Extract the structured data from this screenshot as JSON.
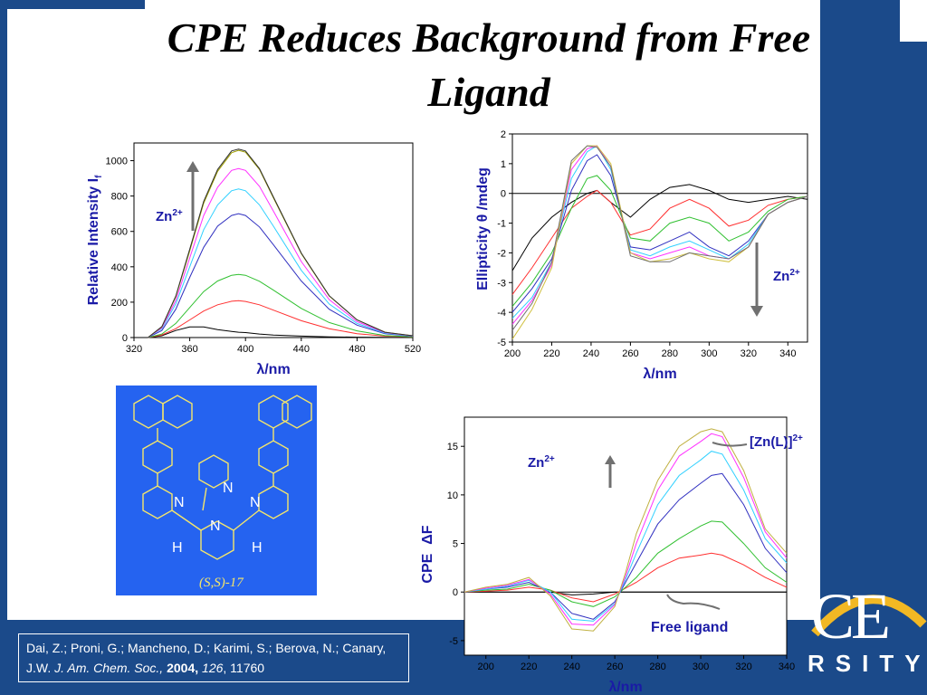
{
  "slide": {
    "title": "CPE Reduces Background from Free Ligand",
    "logo_text": "RSITY",
    "logo_letters": "CE",
    "colors": {
      "frame": "#1b4a8a",
      "structure_bg": "#2563f0",
      "label_blue": "#1a1aa6",
      "structure_lines": "#f5e66a"
    }
  },
  "structure": {
    "label": "(S,S)-17",
    "atoms": {
      "n_top": "N",
      "n_left": "N",
      "n_center": "N",
      "n_right": "N",
      "h_left": "H",
      "h_right": "H"
    }
  },
  "citation": {
    "authors": "Dai, Z.; Proni, G.; Mancheno, D.; Karimi, S.; Berova, N.; Canary, J.W.",
    "journal": "J. Am. Chem. Soc.,",
    "year": "2004,",
    "volume": "126",
    "pages": ", 11760"
  },
  "chart_data": [
    {
      "type": "line",
      "ylabel": "Relative Intensity I",
      "ylabel_sub": "f",
      "xlabel": "λ/nm",
      "xlim": [
        320,
        520
      ],
      "ylim": [
        0,
        1100
      ],
      "xticks": [
        320,
        360,
        400,
        440,
        480,
        520
      ],
      "yticks": [
        0,
        200,
        400,
        600,
        800,
        1000
      ],
      "annotation": "Zn",
      "annotation_sup": "2+",
      "arrow": "up",
      "x": [
        330,
        340,
        350,
        360,
        370,
        380,
        390,
        395,
        400,
        410,
        420,
        440,
        460,
        480,
        500,
        520
      ],
      "series": [
        {
          "color": "#000000",
          "values": [
            0,
            10,
            40,
            60,
            60,
            45,
            35,
            30,
            28,
            20,
            14,
            8,
            4,
            2,
            1,
            0
          ]
        },
        {
          "color": "#ff3030",
          "values": [
            0,
            15,
            50,
            100,
            150,
            185,
            205,
            208,
            204,
            185,
            155,
            95,
            50,
            22,
            8,
            3
          ]
        },
        {
          "color": "#30c030",
          "values": [
            0,
            20,
            80,
            170,
            260,
            320,
            352,
            357,
            352,
            318,
            268,
            165,
            85,
            38,
            12,
            4
          ]
        },
        {
          "color": "#3030c0",
          "values": [
            0,
            40,
            160,
            340,
            510,
            630,
            690,
            700,
            690,
            625,
            525,
            320,
            160,
            70,
            22,
            7
          ]
        },
        {
          "color": "#30d0ff",
          "values": [
            0,
            50,
            190,
            400,
            610,
            750,
            830,
            840,
            830,
            750,
            630,
            380,
            190,
            80,
            25,
            8
          ]
        },
        {
          "color": "#ff30ff",
          "values": [
            0,
            55,
            210,
            450,
            690,
            850,
            945,
            955,
            945,
            855,
            715,
            430,
            215,
            90,
            28,
            9
          ]
        },
        {
          "color": "#a0a000",
          "values": [
            0,
            60,
            230,
            490,
            760,
            940,
            1045,
            1058,
            1048,
            950,
            790,
            475,
            235,
            100,
            30,
            10
          ]
        },
        {
          "color": "#303030",
          "values": [
            0,
            62,
            235,
            500,
            770,
            950,
            1055,
            1065,
            1055,
            955,
            795,
            478,
            237,
            100,
            30,
            10
          ]
        }
      ]
    },
    {
      "type": "line",
      "ylabel": "Ellipticity θ /mdeg",
      "xlabel": "λ/nm",
      "xlim": [
        200,
        350
      ],
      "ylim": [
        -5,
        2
      ],
      "xticks": [
        200,
        220,
        240,
        260,
        280,
        300,
        320,
        340
      ],
      "yticks": [
        -5,
        -4,
        -3,
        -2,
        -1,
        0,
        1,
        2
      ],
      "annotation": "Zn",
      "annotation_sup": "2+",
      "arrow": "down",
      "x": [
        200,
        210,
        220,
        230,
        238,
        243,
        250,
        260,
        270,
        280,
        290,
        300,
        310,
        320,
        330,
        340,
        350
      ],
      "series": [
        {
          "color": "#000000",
          "values": [
            -2.6,
            -1.5,
            -0.8,
            -0.3,
            0.0,
            0.1,
            -0.3,
            -0.8,
            -0.2,
            0.2,
            0.3,
            0.1,
            -0.2,
            -0.3,
            -0.2,
            -0.1,
            -0.2
          ]
        },
        {
          "color": "#ff3030",
          "values": [
            -3.4,
            -2.5,
            -1.5,
            -0.5,
            -0.1,
            0.1,
            -0.3,
            -1.4,
            -1.2,
            -0.5,
            -0.2,
            -0.5,
            -1.1,
            -0.9,
            -0.4,
            -0.2,
            -0.1
          ]
        },
        {
          "color": "#30c030",
          "values": [
            -3.8,
            -3.0,
            -2.0,
            -0.5,
            0.5,
            0.6,
            0.1,
            -1.5,
            -1.6,
            -1.0,
            -0.8,
            -1.0,
            -1.6,
            -1.3,
            -0.6,
            -0.2,
            -0.1
          ]
        },
        {
          "color": "#3030c0",
          "values": [
            -4.0,
            -3.2,
            -2.2,
            0.1,
            1.1,
            1.3,
            0.6,
            -1.8,
            -1.9,
            -1.6,
            -1.3,
            -1.8,
            -2.1,
            -1.6,
            -0.7,
            -0.3,
            -0.1
          ]
        },
        {
          "color": "#30d0ff",
          "values": [
            -4.2,
            -3.5,
            -2.3,
            0.5,
            1.4,
            1.6,
            0.8,
            -1.9,
            -2.1,
            -1.8,
            -1.6,
            -1.9,
            -2.2,
            -1.7,
            -0.7,
            -0.3,
            -0.1
          ]
        },
        {
          "color": "#ff30ff",
          "values": [
            -4.4,
            -3.6,
            -2.4,
            0.8,
            1.5,
            1.6,
            0.9,
            -2.0,
            -2.2,
            -2.0,
            -1.8,
            -2.1,
            -2.2,
            -1.8,
            -0.7,
            -0.3,
            -0.1
          ]
        },
        {
          "color": "#d0c040",
          "values": [
            -4.9,
            -3.9,
            -2.5,
            1.0,
            1.6,
            1.6,
            1.0,
            -2.0,
            -2.3,
            -2.2,
            -2.0,
            -2.2,
            -2.3,
            -1.8,
            -0.7,
            -0.3,
            -0.1
          ]
        },
        {
          "color": "#707070",
          "values": [
            -4.6,
            -3.7,
            -2.3,
            1.1,
            1.6,
            1.55,
            0.9,
            -2.1,
            -2.3,
            -2.3,
            -2.0,
            -2.1,
            -2.2,
            -1.8,
            -0.7,
            -0.3,
            -0.1
          ]
        }
      ]
    },
    {
      "type": "line",
      "ylabel": "CPE",
      "ylabel2": "ΔF",
      "xlabel": "λ/nm",
      "xlim": [
        190,
        340
      ],
      "ylim": [
        -6.5,
        18
      ],
      "xticks": [
        200,
        220,
        240,
        260,
        280,
        300,
        320,
        340
      ],
      "yticks": [
        -5,
        0,
        5,
        10,
        15
      ],
      "annotation": "Zn",
      "annotation_sup": "2+",
      "annotation_complex": "[Zn(L)]",
      "annotation_complex_sup": "2+",
      "annotation_free": "Free ligand",
      "arrow": "up",
      "x": [
        190,
        200,
        210,
        220,
        230,
        240,
        250,
        260,
        265,
        270,
        280,
        290,
        300,
        305,
        310,
        320,
        330,
        340
      ],
      "series": [
        {
          "color": "#000000",
          "values": [
            0,
            0,
            0,
            0,
            0,
            -0.3,
            -0.2,
            0,
            0,
            0,
            0,
            0,
            0,
            0,
            0,
            0,
            0,
            0
          ]
        },
        {
          "color": "#ff3030",
          "values": [
            0,
            0.1,
            0.2,
            0.5,
            0.2,
            -0.6,
            -1.0,
            -0.2,
            0.4,
            1.0,
            2.5,
            3.5,
            3.8,
            4.0,
            3.8,
            2.8,
            1.5,
            0.5
          ]
        },
        {
          "color": "#30c030",
          "values": [
            0,
            0.2,
            0.3,
            0.8,
            0.2,
            -1.0,
            -1.5,
            -0.5,
            0.5,
            1.5,
            4.0,
            5.5,
            6.8,
            7.3,
            7.2,
            5.0,
            2.5,
            1.0
          ]
        },
        {
          "color": "#3030c0",
          "values": [
            0,
            0.3,
            0.5,
            1.0,
            0,
            -2.2,
            -2.8,
            -1.0,
            1.0,
            3.0,
            7.0,
            9.5,
            11.2,
            12.0,
            12.2,
            9.0,
            4.5,
            2.0
          ]
        },
        {
          "color": "#30d0ff",
          "values": [
            0,
            0.3,
            0.6,
            1.2,
            0,
            -2.8,
            -3.0,
            -1.2,
            1.3,
            4.0,
            9.0,
            12.0,
            13.6,
            14.5,
            14.2,
            10.5,
            5.5,
            3.0
          ]
        },
        {
          "color": "#ff30ff",
          "values": [
            0,
            0.4,
            0.7,
            1.3,
            -0.2,
            -3.3,
            -3.4,
            -1.3,
            1.6,
            5.0,
            10.5,
            14.0,
            15.5,
            16.3,
            16.0,
            11.8,
            6.2,
            3.5
          ]
        },
        {
          "color": "#c0b040",
          "values": [
            0,
            0.5,
            0.8,
            1.5,
            -0.4,
            -3.8,
            -4.0,
            -1.5,
            2.0,
            6.0,
            11.5,
            15.0,
            16.5,
            16.8,
            16.5,
            12.5,
            6.5,
            4.0
          ]
        }
      ]
    }
  ]
}
